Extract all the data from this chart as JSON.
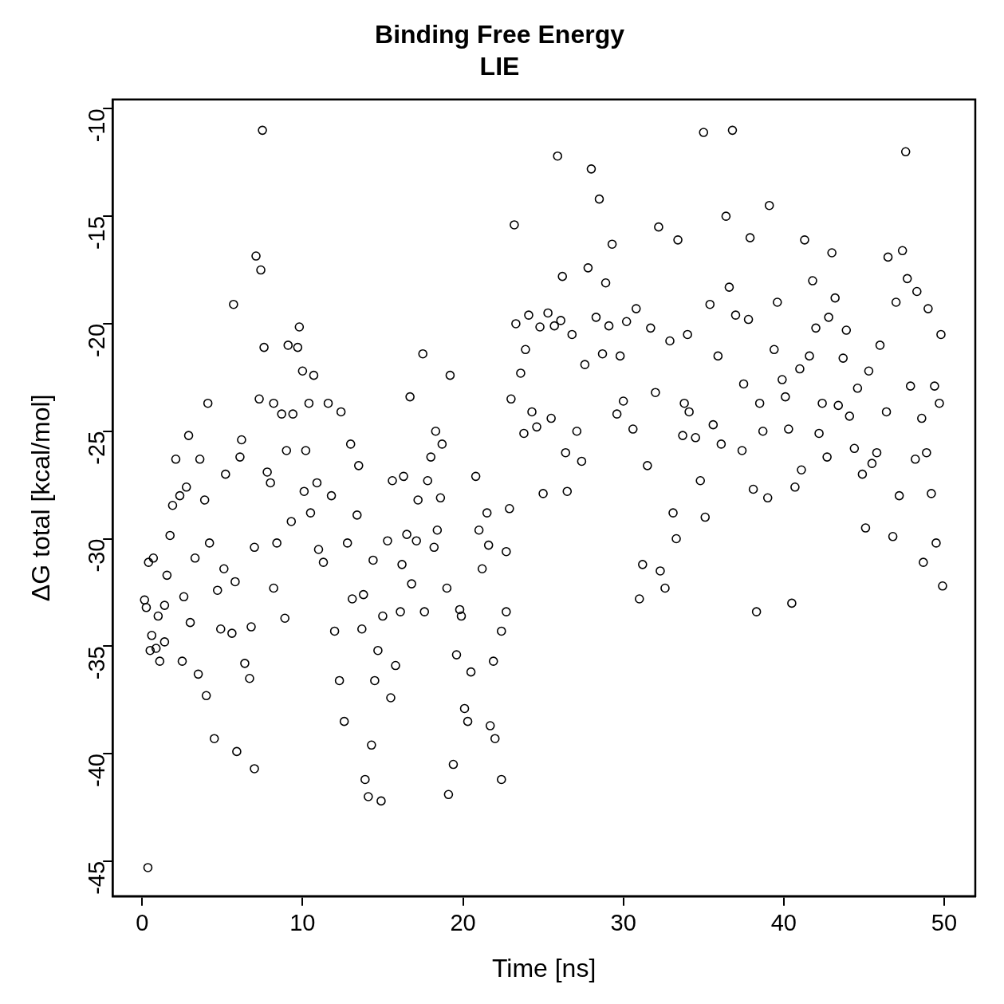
{
  "chart_data": {
    "type": "scatter",
    "title": "Binding Free Energy",
    "subtitle": "LIE",
    "xlabel": "Time [ns]",
    "ylabel": "ΔG total [kcal/mol]",
    "xlim": [
      -1.84,
      51.94
    ],
    "ylim": [
      -46.63,
      -9.57
    ],
    "xticks": [
      0,
      10,
      20,
      30,
      40,
      50
    ],
    "yticks": [
      -45,
      -40,
      -35,
      -30,
      -25,
      -20,
      -15,
      -10
    ],
    "grid": false,
    "marker": "circle",
    "series": [
      {
        "color": "#000000",
        "x": [
          0.36,
          0.15,
          0.26,
          0.4,
          0.7,
          0.6,
          0.5,
          0.87,
          1.1,
          1.0,
          1.4,
          1.4,
          1.55,
          1.74,
          1.9,
          2.1,
          2.35,
          2.6,
          2.5,
          2.76,
          2.9,
          3.0,
          3.3,
          3.5,
          3.6,
          3.9,
          4.0,
          4.1,
          4.2,
          4.5,
          4.7,
          4.9,
          5.1,
          5.2,
          5.6,
          5.7,
          5.8,
          5.9,
          6.1,
          6.2,
          6.4,
          6.7,
          6.8,
          7.0,
          7.0,
          7.1,
          7.4,
          7.3,
          7.5,
          7.6,
          7.8,
          8.0,
          8.2,
          8.2,
          8.4,
          8.7,
          9.0,
          8.9,
          9.1,
          9.3,
          9.4,
          9.7,
          9.8,
          10.0,
          10.1,
          10.2,
          10.4,
          10.5,
          10.7,
          10.9,
          11.0,
          11.3,
          11.6,
          11.8,
          12.0,
          12.3,
          12.4,
          12.6,
          12.8,
          13.0,
          13.1,
          13.4,
          13.5,
          13.7,
          13.8,
          13.9,
          14.1,
          14.3,
          14.4,
          14.5,
          14.7,
          14.9,
          15.0,
          15.3,
          15.5,
          15.6,
          15.8,
          16.1,
          16.2,
          16.3,
          16.5,
          16.7,
          16.8,
          17.1,
          17.2,
          17.5,
          17.6,
          17.8,
          18.0,
          18.2,
          18.3,
          18.4,
          18.6,
          18.7,
          19.0,
          19.1,
          19.2,
          19.4,
          19.6,
          19.8,
          19.9,
          20.1,
          20.3,
          20.5,
          20.8,
          21.0,
          21.2,
          21.5,
          21.6,
          21.7,
          21.9,
          22.0,
          22.4,
          22.4,
          22.7,
          22.7,
          22.9,
          23.0,
          23.2,
          23.3,
          23.6,
          23.8,
          23.9,
          24.1,
          24.3,
          24.6,
          24.8,
          25.0,
          25.3,
          25.5,
          25.7,
          25.9,
          26.1,
          26.2,
          26.4,
          26.5,
          26.8,
          27.1,
          27.4,
          27.6,
          27.8,
          28.0,
          28.3,
          28.5,
          28.7,
          28.9,
          29.1,
          29.3,
          29.6,
          29.8,
          30.0,
          30.2,
          30.6,
          30.8,
          31.0,
          31.2,
          31.5,
          31.7,
          32.0,
          32.2,
          32.3,
          32.6,
          32.9,
          33.1,
          33.3,
          33.4,
          33.7,
          33.8,
          34.0,
          34.1,
          34.5,
          34.8,
          35.0,
          35.1,
          35.4,
          35.6,
          35.9,
          36.1,
          36.4,
          36.6,
          36.8,
          37.0,
          37.4,
          37.5,
          37.8,
          37.9,
          38.1,
          38.3,
          38.5,
          38.7,
          39.0,
          39.1,
          39.4,
          39.6,
          39.9,
          40.1,
          40.3,
          40.5,
          40.7,
          41.0,
          41.1,
          41.3,
          41.6,
          41.8,
          42.0,
          42.2,
          42.4,
          42.7,
          42.8,
          43.0,
          43.2,
          43.4,
          43.7,
          43.9,
          44.1,
          44.4,
          44.6,
          44.9,
          45.1,
          45.3,
          45.5,
          45.8,
          46.0,
          46.4,
          46.5,
          46.8,
          47.0,
          47.2,
          47.4,
          47.6,
          47.7,
          47.9,
          48.2,
          48.3,
          48.6,
          48.7,
          48.9,
          49.0,
          49.2,
          49.4,
          49.5,
          49.7,
          49.8,
          49.9
        ],
        "values": [
          -45.3,
          -32.85,
          -33.2,
          -31.1,
          -30.9,
          -34.5,
          -35.2,
          -35.1,
          -35.7,
          -33.6,
          -33.1,
          -34.8,
          -31.7,
          -29.85,
          -28.45,
          -26.3,
          -28.0,
          -32.7,
          -35.7,
          -27.6,
          -25.2,
          -33.9,
          -30.9,
          -36.3,
          -26.3,
          -28.2,
          -37.3,
          -23.7,
          -30.2,
          -39.3,
          -32.4,
          -34.2,
          -31.4,
          -27.0,
          -34.4,
          -19.1,
          -32.0,
          -39.9,
          -26.2,
          -25.4,
          -35.8,
          -36.5,
          -34.1,
          -40.7,
          -30.4,
          -16.85,
          -17.5,
          -23.5,
          -11.0,
          -21.1,
          -26.9,
          -27.4,
          -23.7,
          -32.3,
          -30.2,
          -24.2,
          -25.9,
          -33.7,
          -21.0,
          -29.2,
          -24.2,
          -21.1,
          -20.15,
          -22.2,
          -27.8,
          -25.9,
          -23.7,
          -28.8,
          -22.4,
          -27.4,
          -30.5,
          -31.1,
          -23.7,
          -28.0,
          -34.3,
          -36.6,
          -24.1,
          -38.5,
          -30.2,
          -25.6,
          -32.8,
          -28.9,
          -26.6,
          -34.2,
          -32.6,
          -41.2,
          -42.0,
          -39.6,
          -31.0,
          -36.6,
          -35.2,
          -42.2,
          -33.6,
          -30.1,
          -37.4,
          -27.3,
          -35.9,
          -33.4,
          -31.2,
          -27.1,
          -29.8,
          -23.4,
          -32.1,
          -30.1,
          -28.2,
          -21.4,
          -33.4,
          -27.3,
          -26.2,
          -30.4,
          -25.0,
          -29.6,
          -28.1,
          -25.6,
          -32.3,
          -41.9,
          -22.4,
          -40.5,
          -35.4,
          -33.3,
          -33.6,
          -37.9,
          -38.5,
          -36.2,
          -27.1,
          -29.6,
          -31.4,
          -28.8,
          -30.3,
          -38.7,
          -35.7,
          -39.3,
          -41.2,
          -34.3,
          -30.6,
          -33.4,
          -28.6,
          -23.5,
          -15.4,
          -20.0,
          -22.3,
          -25.1,
          -21.2,
          -19.6,
          -24.1,
          -24.8,
          -20.15,
          -27.9,
          -19.5,
          -24.4,
          -20.1,
          -12.2,
          -19.85,
          -17.8,
          -26.0,
          -27.8,
          -20.5,
          -25.0,
          -26.4,
          -21.9,
          -17.4,
          -12.8,
          -19.7,
          -14.2,
          -21.4,
          -18.1,
          -20.1,
          -16.3,
          -24.2,
          -21.5,
          -23.6,
          -19.9,
          -24.9,
          -19.3,
          -32.8,
          -31.2,
          -26.6,
          -20.2,
          -23.2,
          -15.5,
          -31.5,
          -32.3,
          -20.8,
          -28.8,
          -30.0,
          -16.1,
          -25.2,
          -23.7,
          -20.5,
          -24.1,
          -25.3,
          -27.3,
          -11.1,
          -29.0,
          -19.1,
          -24.7,
          -21.5,
          -25.6,
          -15.0,
          -18.3,
          -11.0,
          -19.6,
          -25.9,
          -22.8,
          -19.8,
          -16.0,
          -27.7,
          -33.4,
          -23.7,
          -25.0,
          -28.1,
          -14.5,
          -21.2,
          -19.0,
          -22.6,
          -23.4,
          -24.9,
          -33.0,
          -27.6,
          -22.1,
          -26.8,
          -16.1,
          -21.5,
          -18.0,
          -20.2,
          -25.1,
          -23.7,
          -26.2,
          -19.7,
          -16.7,
          -18.8,
          -23.8,
          -21.6,
          -20.3,
          -24.3,
          -25.8,
          -23.0,
          -27.0,
          -29.5,
          -22.2,
          -26.5,
          -26.0,
          -21.0,
          -24.1,
          -16.9,
          -29.9,
          -19.0,
          -28.0,
          -16.6,
          -12.0,
          -17.9,
          -22.9,
          -26.3,
          -18.5,
          -24.4,
          -31.1,
          -26.0,
          -19.3,
          -27.9,
          -22.9,
          -30.2,
          -23.7,
          -20.5,
          -32.2
        ]
      }
    ]
  }
}
